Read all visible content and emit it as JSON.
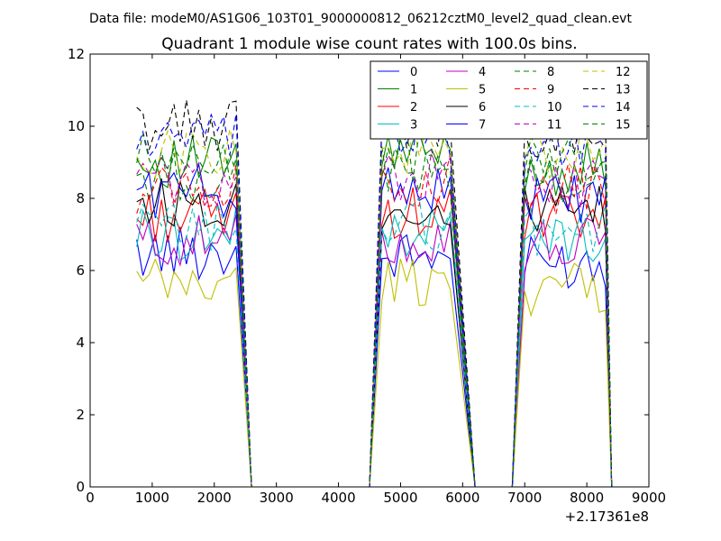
{
  "suptitle": "Data file: modeM0/AS1G06_103T01_9000000812_06212cztM0_level2_quad_clean.evt",
  "chart_data": {
    "type": "line",
    "title": "Quadrant 1 module wise count rates with 100.0s bins.",
    "xlabel": "",
    "ylabel": "",
    "x_offset_label": "+2.17361e8",
    "xlim": [
      0,
      9000
    ],
    "ylim": [
      0,
      12
    ],
    "xticks": [
      0,
      1000,
      2000,
      3000,
      4000,
      5000,
      6000,
      7000,
      8000,
      9000
    ],
    "yticks": [
      0,
      2,
      4,
      6,
      8,
      10,
      12
    ],
    "legend_position": "top-right",
    "grid": false,
    "segments": [
      {
        "x_start": 750,
        "x_step": 100,
        "count": 17,
        "drop_to": 2600
      },
      {
        "x_start": 4700,
        "x_step": 100,
        "count": 12,
        "rise_from": 4500,
        "drop_to": 6200
      },
      {
        "x_start": 7000,
        "x_step": 100,
        "count": 14,
        "rise_from": 6800,
        "drop_to": 8400
      }
    ],
    "series": [
      {
        "name": "0",
        "color": "#0000ff",
        "dash": "solid",
        "levels": [
          6.5,
          6.4,
          6.2
        ]
      },
      {
        "name": "1",
        "color": "#008000",
        "dash": "solid",
        "levels": [
          9.0,
          9.2,
          8.8
        ]
      },
      {
        "name": "2",
        "color": "#ff0000",
        "dash": "solid",
        "levels": [
          7.5,
          7.6,
          7.4
        ]
      },
      {
        "name": "3",
        "color": "#00bfbf",
        "dash": "solid",
        "levels": [
          7.0,
          7.1,
          6.9
        ]
      },
      {
        "name": "4",
        "color": "#bf00bf",
        "dash": "solid",
        "levels": [
          6.8,
          6.9,
          6.7
        ]
      },
      {
        "name": "5",
        "color": "#bfbf00",
        "dash": "solid",
        "levels": [
          5.6,
          5.7,
          5.5
        ]
      },
      {
        "name": "6",
        "color": "#000000",
        "dash": "solid",
        "levels": [
          7.9,
          7.8,
          7.6
        ]
      },
      {
        "name": "7",
        "color": "#0000ff",
        "dash": "solid",
        "levels": [
          8.2,
          8.3,
          8.0
        ]
      },
      {
        "name": "8",
        "color": "#008000",
        "dash": "dashed",
        "levels": [
          8.6,
          8.8,
          8.5
        ]
      },
      {
        "name": "9",
        "color": "#ff0000",
        "dash": "dashed",
        "levels": [
          8.3,
          8.5,
          8.2
        ]
      },
      {
        "name": "10",
        "color": "#00bfbf",
        "dash": "dashed",
        "levels": [
          7.2,
          7.3,
          7.1
        ]
      },
      {
        "name": "11",
        "color": "#bf00bf",
        "dash": "dashed",
        "levels": [
          8.5,
          8.6,
          8.4
        ]
      },
      {
        "name": "12",
        "color": "#bfbf00",
        "dash": "dashed",
        "levels": [
          9.3,
          9.4,
          9.2
        ]
      },
      {
        "name": "13",
        "color": "#000000",
        "dash": "dashed",
        "levels": [
          10.0,
          10.1,
          9.8
        ]
      },
      {
        "name": "14",
        "color": "#0000ff",
        "dash": "dashed",
        "levels": [
          9.6,
          9.8,
          9.5
        ]
      },
      {
        "name": "15",
        "color": "#008000",
        "dash": "dashed",
        "levels": [
          9.1,
          9.2,
          9.0
        ]
      }
    ]
  }
}
